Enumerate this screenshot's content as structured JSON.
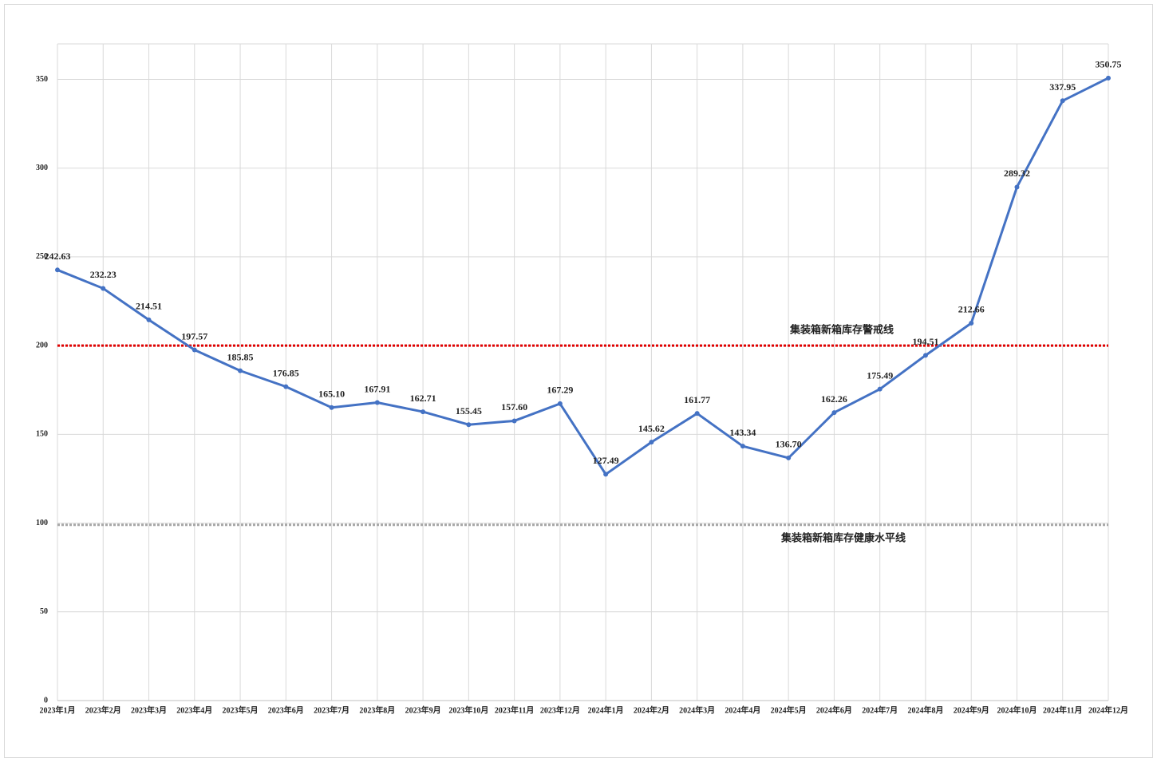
{
  "chart_data": {
    "type": "line",
    "categories": [
      "2023年1月",
      "2023年2月",
      "2023年3月",
      "2023年4月",
      "2023年5月",
      "2023年6月",
      "2023年7月",
      "2023年8月",
      "2023年9月",
      "2023年10月",
      "2023年11月",
      "2023年12月",
      "2024年1月",
      "2024年2月",
      "2024年3月",
      "2024年4月",
      "2024年5月",
      "2024年6月",
      "2024年7月",
      "2024年8月",
      "2024年9月",
      "2024年10月",
      "2024年11月",
      "2024年12月"
    ],
    "values": [
      242.63,
      232.23,
      214.51,
      197.57,
      185.85,
      176.85,
      165.1,
      167.91,
      162.71,
      155.45,
      157.6,
      167.29,
      127.49,
      145.62,
      161.77,
      143.34,
      136.7,
      162.26,
      175.49,
      194.51,
      212.66,
      289.32,
      337.95,
      350.75
    ],
    "value_labels": [
      "242.63",
      "232.23",
      "214.51",
      "197.57",
      "185.85",
      "176.85",
      "165.10",
      "167.91",
      "162.71",
      "155.45",
      "157.60",
      "167.29",
      "127.49",
      "145.62",
      "161.77",
      "143.34",
      "136.70",
      "162.26",
      "175.49",
      "194.51",
      "212.66",
      "289.32",
      "337.95",
      "350.75"
    ],
    "color": "#4472c4",
    "ylim": [
      0,
      370
    ],
    "yticks": [
      0,
      50,
      100,
      150,
      200,
      250,
      300,
      350
    ],
    "grid": true,
    "reference_lines": [
      {
        "value": 200,
        "label": "集装箱新箱库存警戒线",
        "color": "#e00000"
      },
      {
        "value": 99,
        "label": "集装箱新箱库存健康水平线",
        "color": "#a6a6a6"
      }
    ]
  }
}
